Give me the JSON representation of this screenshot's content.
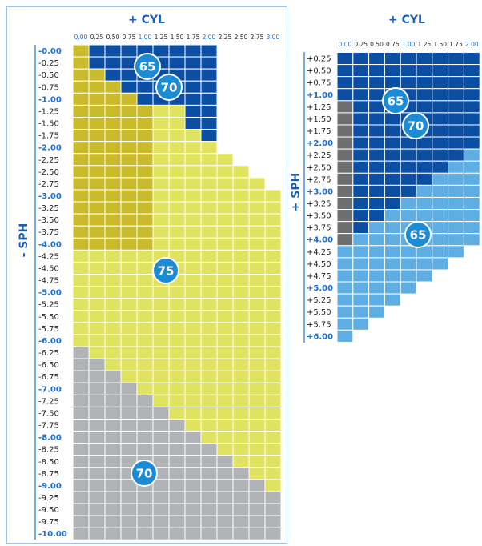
{
  "left_panel": {
    "cyl_label": "+ CYL",
    "sph_label": "- SPH",
    "cyl": [
      "0.00",
      "0.25",
      "0.50",
      "0.75",
      "1.00",
      "1.25",
      "1.50",
      "1.75",
      "2.00",
      "2.25",
      "2.50",
      "2.75",
      "3.00"
    ],
    "sph": [
      "-0.00",
      "-0.25",
      "-0.50",
      "-0.75",
      "-1.00",
      "-1.25",
      "-1.50",
      "-1.75",
      "-2.00",
      "-2.25",
      "-2.50",
      "-2.75",
      "-3.00",
      "-3.25",
      "-3.50",
      "-3.75",
      "-4.00",
      "-4.25",
      "-4.50",
      "-4.75",
      "-5.00",
      "-5.25",
      "-5.50",
      "-5.75",
      "-6.00",
      "-6.25",
      "-6.50",
      "-6.75",
      "-7.00",
      "-7.25",
      "-7.50",
      "-7.75",
      "-8.00",
      "-8.25",
      "-8.50",
      "-8.75",
      "-9.00",
      "-9.25",
      "-9.50",
      "-9.75",
      "-10.00"
    ],
    "badges": [
      "65",
      "70",
      "75",
      "70"
    ]
  },
  "right_panel": {
    "cyl_label": "+ CYL",
    "sph_label": "+ SPH",
    "cyl": [
      "0.00",
      "0.25",
      "0.50",
      "0.75",
      "1.00",
      "1.25",
      "1.50",
      "1.75",
      "2.00"
    ],
    "sph": [
      "+0.25",
      "+0.50",
      "+0.75",
      "+1.00",
      "+1.25",
      "+1.50",
      "+1.75",
      "+2.00",
      "+2.25",
      "+2.50",
      "+2.75",
      "+3.00",
      "+3.25",
      "+3.50",
      "+3.75",
      "+4.00",
      "+4.25",
      "+4.50",
      "+4.75",
      "+5.00",
      "+5.25",
      "+5.50",
      "+5.75",
      "+6.00"
    ],
    "badges": [
      "65",
      "70",
      "65"
    ]
  }
}
